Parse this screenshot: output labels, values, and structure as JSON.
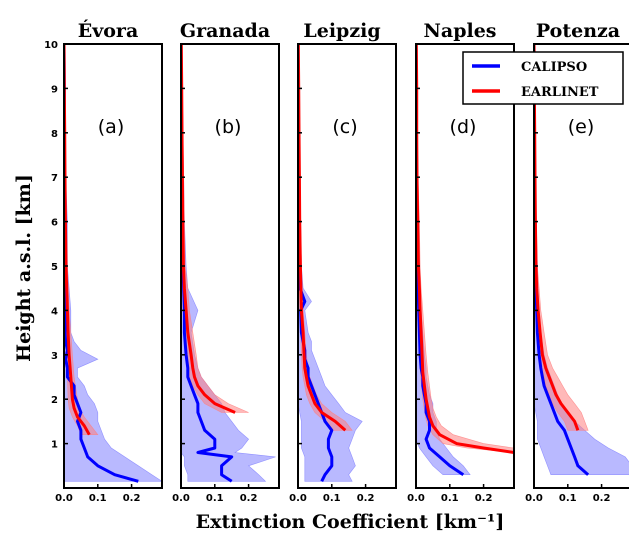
{
  "chart_data": {
    "type": "line",
    "xlabel": "Extinction Coefficient [km⁻¹]",
    "ylabel": "Height a.s.l. [km]",
    "ylim": [
      0,
      10
    ],
    "xlim": [
      0,
      0.29
    ],
    "y_ticks": [
      "1",
      "2",
      "3",
      "4",
      "5",
      "6",
      "7",
      "8",
      "9",
      "10"
    ],
    "x_ticks": [
      "0.0",
      "0.1",
      "0.2"
    ],
    "legend": {
      "position": "top-right",
      "entries": [
        {
          "name": "CALIPSO",
          "color": "#0000ff"
        },
        {
          "name": "EARLINET",
          "color": "#ff0000"
        }
      ]
    },
    "colors": {
      "calipso": "#0000ff",
      "earlinet": "#ff0000",
      "calipso_band": "#8080ff",
      "earlinet_band": "#ff8080"
    },
    "panels": [
      {
        "title": "Évora",
        "label": "(a)",
        "calipso": {
          "h": [
            0.15,
            0.3,
            0.5,
            0.7,
            0.9,
            1.1,
            1.3,
            1.5,
            1.7,
            1.9,
            2.1,
            2.3,
            2.5,
            2.7,
            2.9,
            3.1,
            3.3,
            3.5,
            4.0,
            5.0,
            6.0,
            7.0,
            8.0,
            9.0,
            10.0
          ],
          "ext": [
            0.22,
            0.15,
            0.1,
            0.07,
            0.06,
            0.05,
            0.05,
            0.04,
            0.05,
            0.04,
            0.03,
            0.03,
            0.01,
            0.01,
            0.005,
            0.01,
            0.005,
            0.003,
            0.003,
            0.002,
            0.002,
            0.001,
            0.001,
            0.001,
            0.0
          ],
          "lo": [
            0.0,
            0.0,
            0.0,
            0.0,
            0.0,
            0.0,
            0.0,
            0.0,
            0.0,
            0.0,
            0.0,
            0.0,
            0.0,
            0.0,
            0.0,
            0.0,
            0.0,
            0.0,
            0.0,
            0.0,
            0.0,
            0.0,
            0.0,
            0.0,
            0.0
          ],
          "hi": [
            0.29,
            0.26,
            0.22,
            0.18,
            0.14,
            0.12,
            0.11,
            0.1,
            0.1,
            0.09,
            0.07,
            0.06,
            0.04,
            0.04,
            0.1,
            0.05,
            0.03,
            0.02,
            0.02,
            0.01,
            0.01,
            0.005,
            0.005,
            0.003,
            0.002
          ]
        },
        "earlinet": {
          "h": [
            1.2,
            1.4,
            1.6,
            1.8,
            2.0,
            2.5,
            3.0,
            3.5,
            4.0,
            5.0,
            6.0,
            7.0,
            8.0,
            9.0,
            10.0
          ],
          "ext": [
            0.075,
            0.06,
            0.04,
            0.03,
            0.025,
            0.02,
            0.015,
            0.012,
            0.01,
            0.006,
            0.004,
            0.003,
            0.002,
            0.001,
            0.0
          ],
          "lo": [
            0.05,
            0.04,
            0.025,
            0.015,
            0.012,
            0.01,
            0.008,
            0.006,
            0.004,
            0.002,
            0.0,
            0.0,
            0.0,
            0.0,
            0.0
          ],
          "hi": [
            0.1,
            0.08,
            0.06,
            0.045,
            0.04,
            0.03,
            0.025,
            0.02,
            0.015,
            0.01,
            0.008,
            0.005,
            0.004,
            0.002,
            0.001
          ]
        }
      },
      {
        "title": "Granada",
        "label": "(b)",
        "calipso": {
          "h": [
            0.15,
            0.3,
            0.5,
            0.7,
            0.8,
            0.9,
            1.1,
            1.3,
            1.5,
            1.7,
            1.9,
            2.1,
            2.3,
            2.5,
            2.7,
            3.0,
            3.5,
            4.0,
            4.5,
            5.0,
            6.0,
            7.0,
            8.0,
            9.0,
            10.0
          ],
          "ext": [
            0.15,
            0.12,
            0.12,
            0.15,
            0.05,
            0.1,
            0.1,
            0.07,
            0.06,
            0.05,
            0.05,
            0.04,
            0.03,
            0.02,
            0.02,
            0.015,
            0.01,
            0.01,
            0.008,
            0.006,
            0.004,
            0.003,
            0.002,
            0.001,
            0.0
          ],
          "lo": [
            0.02,
            0.02,
            0.01,
            0.01,
            0.0,
            0.0,
            0.0,
            0.0,
            0.0,
            0.0,
            0.0,
            0.0,
            0.0,
            0.0,
            0.0,
            0.0,
            0.0,
            0.0,
            0.0,
            0.0,
            0.0,
            0.0,
            0.0,
            0.0,
            0.0
          ],
          "hi": [
            0.25,
            0.23,
            0.2,
            0.28,
            0.16,
            0.18,
            0.2,
            0.17,
            0.15,
            0.13,
            0.12,
            0.1,
            0.08,
            0.06,
            0.05,
            0.04,
            0.03,
            0.05,
            0.02,
            0.015,
            0.01,
            0.008,
            0.005,
            0.003,
            0.002
          ]
        },
        "earlinet": {
          "h": [
            1.7,
            1.9,
            2.1,
            2.3,
            2.5,
            2.7,
            3.0,
            3.5,
            4.0,
            4.5,
            5.0,
            6.0,
            7.0,
            8.0,
            9.0,
            10.0
          ],
          "ext": [
            0.16,
            0.1,
            0.07,
            0.05,
            0.04,
            0.035,
            0.03,
            0.02,
            0.015,
            0.01,
            0.007,
            0.005,
            0.004,
            0.003,
            0.002,
            0.001
          ],
          "lo": [
            0.12,
            0.07,
            0.05,
            0.035,
            0.025,
            0.02,
            0.015,
            0.01,
            0.006,
            0.004,
            0.002,
            0.0,
            0.0,
            0.0,
            0.0,
            0.0
          ],
          "hi": [
            0.2,
            0.14,
            0.1,
            0.08,
            0.06,
            0.05,
            0.045,
            0.035,
            0.025,
            0.02,
            0.012,
            0.01,
            0.008,
            0.006,
            0.004,
            0.002
          ]
        }
      },
      {
        "title": "Leipzig",
        "label": "(c)",
        "calipso": {
          "h": [
            0.15,
            0.3,
            0.5,
            0.7,
            0.9,
            1.1,
            1.3,
            1.5,
            1.7,
            1.9,
            2.1,
            2.3,
            2.5,
            2.7,
            2.9,
            3.1,
            3.3,
            3.5,
            4.0,
            4.2,
            4.5,
            5.0,
            6.0,
            7.0,
            8.0,
            9.0,
            10.0
          ],
          "ext": [
            0.07,
            0.08,
            0.1,
            0.1,
            0.09,
            0.09,
            0.1,
            0.08,
            0.07,
            0.06,
            0.05,
            0.04,
            0.03,
            0.03,
            0.02,
            0.02,
            0.015,
            0.01,
            0.008,
            0.02,
            0.006,
            0.005,
            0.003,
            0.002,
            0.001,
            0.001,
            0.0
          ],
          "lo": [
            0.02,
            0.02,
            0.02,
            0.02,
            0.01,
            0.01,
            0.01,
            0.01,
            0.005,
            0.0,
            0.0,
            0.0,
            0.0,
            0.0,
            0.0,
            0.0,
            0.0,
            0.0,
            0.0,
            0.0,
            0.0,
            0.0,
            0.0,
            0.0,
            0.0,
            0.0,
            0.0
          ],
          "hi": [
            0.16,
            0.15,
            0.17,
            0.16,
            0.15,
            0.16,
            0.17,
            0.19,
            0.14,
            0.12,
            0.1,
            0.08,
            0.07,
            0.06,
            0.05,
            0.04,
            0.04,
            0.03,
            0.02,
            0.04,
            0.015,
            0.01,
            0.008,
            0.005,
            0.003,
            0.002,
            0.001
          ]
        },
        "earlinet": {
          "h": [
            1.3,
            1.5,
            1.7,
            1.9,
            2.1,
            2.3,
            2.5,
            2.7,
            3.0,
            3.5,
            4.0,
            5.0,
            6.0,
            7.0,
            8.0,
            9.0,
            10.0
          ],
          "ext": [
            0.14,
            0.11,
            0.07,
            0.05,
            0.04,
            0.03,
            0.025,
            0.02,
            0.018,
            0.015,
            0.01,
            0.007,
            0.005,
            0.004,
            0.003,
            0.002,
            0.001
          ],
          "lo": [
            0.1,
            0.08,
            0.05,
            0.035,
            0.025,
            0.02,
            0.015,
            0.012,
            0.01,
            0.008,
            0.005,
            0.002,
            0.0,
            0.0,
            0.0,
            0.0,
            0.0
          ],
          "hi": [
            0.16,
            0.14,
            0.1,
            0.07,
            0.055,
            0.045,
            0.035,
            0.03,
            0.025,
            0.02,
            0.015,
            0.01,
            0.008,
            0.006,
            0.004,
            0.003,
            0.002
          ]
        }
      },
      {
        "title": "Naples",
        "label": "(d)",
        "calipso": {
          "h": [
            0.3,
            0.5,
            0.7,
            0.9,
            1.1,
            1.3,
            1.5,
            1.7,
            1.9,
            2.1,
            2.3,
            2.5,
            2.7,
            3.0,
            3.5,
            4.0,
            5.0,
            6.0,
            7.0,
            8.0,
            9.0,
            10.0
          ],
          "ext": [
            0.14,
            0.1,
            0.07,
            0.04,
            0.03,
            0.04,
            0.04,
            0.03,
            0.03,
            0.025,
            0.02,
            0.02,
            0.015,
            0.012,
            0.01,
            0.008,
            0.005,
            0.003,
            0.002,
            0.001,
            0.001,
            0.0
          ],
          "lo": [
            0.08,
            0.05,
            0.03,
            0.01,
            0.0,
            0.0,
            0.0,
            0.0,
            0.0,
            0.0,
            0.0,
            0.0,
            0.0,
            0.0,
            0.0,
            0.0,
            0.0,
            0.0,
            0.0,
            0.0,
            0.0,
            0.0
          ],
          "hi": [
            0.16,
            0.14,
            0.11,
            0.09,
            0.07,
            0.06,
            0.06,
            0.05,
            0.05,
            0.04,
            0.035,
            0.03,
            0.03,
            0.025,
            0.02,
            0.015,
            0.01,
            0.008,
            0.005,
            0.003,
            0.002,
            0.001
          ]
        },
        "earlinet": {
          "h": [
            0.8,
            0.9,
            1.0,
            1.2,
            1.4,
            1.6,
            1.8,
            2.0,
            2.3,
            2.6,
            3.0,
            3.5,
            4.0,
            4.5,
            5.0,
            6.0,
            7.0,
            8.0,
            9.0,
            10.0
          ],
          "ext": [
            0.29,
            0.2,
            0.12,
            0.07,
            0.05,
            0.04,
            0.035,
            0.03,
            0.025,
            0.02,
            0.018,
            0.015,
            0.012,
            0.01,
            0.007,
            0.005,
            0.003,
            0.002,
            0.002,
            0.001
          ],
          "lo": [
            0.29,
            0.15,
            0.08,
            0.05,
            0.035,
            0.028,
            0.024,
            0.02,
            0.016,
            0.013,
            0.011,
            0.009,
            0.007,
            0.005,
            0.003,
            0.001,
            0.0,
            0.0,
            0.0,
            0.0
          ],
          "hi": [
            0.29,
            0.29,
            0.2,
            0.11,
            0.075,
            0.06,
            0.05,
            0.045,
            0.04,
            0.035,
            0.03,
            0.025,
            0.02,
            0.015,
            0.012,
            0.01,
            0.006,
            0.004,
            0.003,
            0.002
          ]
        }
      },
      {
        "title": "Potenza",
        "label": "(e)",
        "calipso": {
          "h": [
            0.3,
            0.5,
            0.7,
            0.9,
            1.1,
            1.3,
            1.5,
            1.7,
            1.9,
            2.1,
            2.3,
            2.5,
            2.7,
            3.0,
            3.5,
            4.0,
            4.5,
            5.0,
            6.0,
            7.0,
            8.0,
            9.0,
            10.0
          ],
          "ext": [
            0.16,
            0.13,
            0.12,
            0.11,
            0.1,
            0.09,
            0.07,
            0.06,
            0.05,
            0.04,
            0.03,
            0.025,
            0.02,
            0.015,
            0.01,
            0.008,
            0.006,
            0.005,
            0.003,
            0.002,
            0.001,
            0.001,
            0.0
          ],
          "lo": [
            0.05,
            0.04,
            0.03,
            0.02,
            0.01,
            0.01,
            0.01,
            0.005,
            0.0,
            0.0,
            0.0,
            0.0,
            0.0,
            0.0,
            0.0,
            0.0,
            0.0,
            0.0,
            0.0,
            0.0,
            0.0,
            0.0,
            0.0
          ],
          "hi": [
            0.29,
            0.29,
            0.27,
            0.22,
            0.18,
            0.15,
            0.12,
            0.1,
            0.08,
            0.07,
            0.06,
            0.05,
            0.04,
            0.03,
            0.02,
            0.015,
            0.012,
            0.01,
            0.006,
            0.004,
            0.003,
            0.002,
            0.001
          ]
        },
        "earlinet": {
          "h": [
            1.3,
            1.5,
            1.7,
            1.9,
            2.1,
            2.3,
            2.5,
            2.7,
            3.0,
            3.5,
            4.0,
            4.5,
            5.0,
            6.0,
            7.0,
            8.0,
            9.0,
            10.0
          ],
          "ext": [
            0.13,
            0.12,
            0.1,
            0.08,
            0.065,
            0.055,
            0.045,
            0.035,
            0.025,
            0.018,
            0.012,
            0.008,
            0.006,
            0.004,
            0.003,
            0.002,
            0.001,
            0.0
          ],
          "lo": [
            0.1,
            0.09,
            0.07,
            0.055,
            0.045,
            0.035,
            0.03,
            0.02,
            0.015,
            0.01,
            0.006,
            0.003,
            0.002,
            0.0,
            0.0,
            0.0,
            0.0,
            0.0
          ],
          "hi": [
            0.16,
            0.15,
            0.14,
            0.12,
            0.1,
            0.085,
            0.07,
            0.055,
            0.04,
            0.03,
            0.02,
            0.015,
            0.01,
            0.007,
            0.005,
            0.004,
            0.003,
            0.002
          ]
        }
      }
    ]
  }
}
